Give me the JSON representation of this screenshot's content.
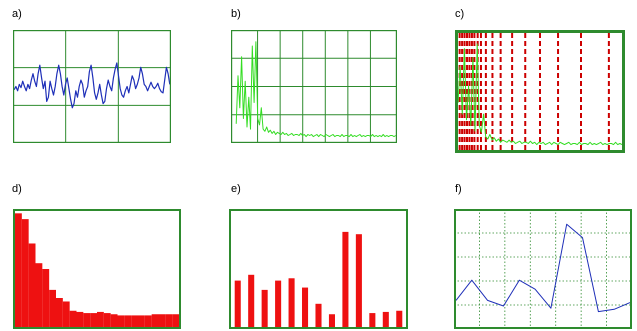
{
  "labels": {
    "a": "a)",
    "b": "b)",
    "c": "c)",
    "d": "d)",
    "e": "e)",
    "f": "f)"
  },
  "colors": {
    "frame": "#2e8b2e",
    "grid": "#2e8b2e",
    "blue": "#1e2fb8",
    "green": "#33dd22",
    "red": "#ee1111",
    "redDash": "#cc0000"
  },
  "chart_data": [
    {
      "panel": "a",
      "type": "line",
      "color": "blue",
      "grid": true,
      "values": [
        0.47,
        0.5,
        0.46,
        0.52,
        0.49,
        0.55,
        0.5,
        0.46,
        0.52,
        0.48,
        0.56,
        0.62,
        0.55,
        0.5,
        0.62,
        0.7,
        0.58,
        0.48,
        0.55,
        0.36,
        0.4,
        0.55,
        0.48,
        0.42,
        0.5,
        0.62,
        0.7,
        0.62,
        0.5,
        0.42,
        0.52,
        0.58,
        0.48,
        0.38,
        0.3,
        0.34,
        0.46,
        0.4,
        0.5,
        0.56,
        0.52,
        0.4,
        0.46,
        0.5,
        0.64,
        0.7,
        0.58,
        0.44,
        0.38,
        0.44,
        0.52,
        0.42,
        0.34,
        0.36,
        0.48,
        0.56,
        0.5,
        0.46,
        0.58,
        0.66,
        0.72,
        0.6,
        0.48,
        0.42,
        0.4,
        0.46,
        0.5,
        0.44,
        0.52,
        0.6,
        0.56,
        0.48,
        0.52,
        0.58,
        0.68,
        0.62,
        0.52,
        0.5,
        0.46,
        0.5,
        0.54,
        0.5,
        0.48,
        0.5,
        0.53,
        0.48,
        0.45,
        0.44,
        0.56,
        0.68,
        0.62,
        0.52
      ]
    },
    {
      "panel": "b",
      "type": "line",
      "color": "green",
      "grid": true,
      "values": [
        0.15,
        0.6,
        0.3,
        0.78,
        0.2,
        0.55,
        0.12,
        0.4,
        0.1,
        0.88,
        0.35,
        0.92,
        0.2,
        0.14,
        0.3,
        0.1,
        0.08,
        0.12,
        0.07,
        0.09,
        0.06,
        0.08,
        0.05,
        0.07,
        0.06,
        0.05,
        0.07,
        0.05,
        0.06,
        0.04,
        0.05,
        0.06,
        0.04,
        0.05,
        0.05,
        0.04,
        0.06,
        0.04,
        0.05,
        0.03,
        0.05,
        0.04,
        0.05,
        0.03,
        0.04,
        0.05,
        0.03,
        0.05,
        0.04,
        0.03,
        0.05,
        0.04,
        0.03,
        0.04,
        0.05,
        0.03,
        0.04,
        0.04,
        0.03,
        0.05,
        0.03,
        0.04,
        0.04,
        0.03,
        0.05,
        0.03,
        0.04,
        0.03,
        0.04,
        0.05,
        0.03,
        0.04,
        0.03,
        0.04,
        0.04,
        0.03,
        0.05,
        0.03,
        0.04,
        0.03,
        0.04,
        0.03,
        0.05,
        0.03,
        0.04,
        0.03,
        0.04,
        0.04,
        0.03,
        0.04
      ]
    },
    {
      "panel": "c",
      "type": "line",
      "color": "green",
      "grid": false,
      "markers": [
        0.01,
        0.025,
        0.04,
        0.055,
        0.07,
        0.085,
        0.1,
        0.12,
        0.14,
        0.17,
        0.21,
        0.26,
        0.33,
        0.41,
        0.5,
        0.61,
        0.75,
        0.92
      ],
      "values": [
        0.4,
        0.72,
        0.3,
        0.88,
        0.25,
        0.55,
        0.2,
        0.8,
        0.15,
        0.92,
        0.2,
        0.14,
        0.3,
        0.1,
        0.08,
        0.12,
        0.07,
        0.09,
        0.06,
        0.08,
        0.05,
        0.07,
        0.06,
        0.05,
        0.07,
        0.05,
        0.06,
        0.04,
        0.05,
        0.06,
        0.04,
        0.05,
        0.05,
        0.04,
        0.06,
        0.04,
        0.05,
        0.03,
        0.05,
        0.04,
        0.05,
        0.03,
        0.04,
        0.05,
        0.03,
        0.05,
        0.04,
        0.03,
        0.05,
        0.04,
        0.03,
        0.04,
        0.05,
        0.03,
        0.04,
        0.04,
        0.03,
        0.05,
        0.03,
        0.04,
        0.04,
        0.03,
        0.05,
        0.03,
        0.04,
        0.03,
        0.04,
        0.05,
        0.03,
        0.04,
        0.03,
        0.04,
        0.04,
        0.03,
        0.05,
        0.03,
        0.04,
        0.03
      ]
    },
    {
      "panel": "d",
      "type": "bar",
      "color": "red",
      "values": [
        0.98,
        0.93,
        0.72,
        0.55,
        0.5,
        0.32,
        0.25,
        0.22,
        0.14,
        0.13,
        0.12,
        0.12,
        0.13,
        0.12,
        0.11,
        0.1,
        0.1,
        0.1,
        0.1,
        0.1,
        0.11,
        0.11,
        0.11,
        0.11
      ]
    },
    {
      "panel": "e",
      "type": "bar",
      "color": "red",
      "values": [
        0.4,
        0.45,
        0.32,
        0.4,
        0.42,
        0.34,
        0.2,
        0.11,
        0.82,
        0.8,
        0.12,
        0.13,
        0.14
      ]
    },
    {
      "panel": "f",
      "type": "line",
      "color": "blue",
      "grid": true,
      "values": [
        0.22,
        0.4,
        0.22,
        0.17,
        0.4,
        0.32,
        0.15,
        0.9,
        0.78,
        0.12,
        0.14,
        0.2
      ]
    }
  ]
}
